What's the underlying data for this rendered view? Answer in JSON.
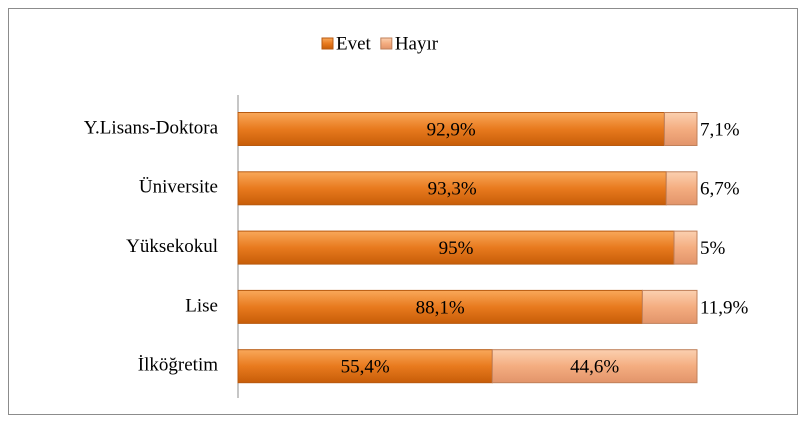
{
  "chart_data": {
    "type": "stacked_bar_horizontal",
    "categories": [
      "Y.Lisans-Doktora",
      "Üniversite",
      "Yüksekokul",
      "Lise",
      "İlköğretim"
    ],
    "series": [
      {
        "name": "Evet",
        "color": "#e46c0a",
        "values": [
          92.9,
          93.3,
          95,
          88.1,
          55.4
        ],
        "value_labels": [
          "92,9%",
          "93,3%",
          "95%",
          "88,1%",
          "55,4%"
        ]
      },
      {
        "name": "Hayır",
        "color": "#f6b48a",
        "values": [
          7.1,
          6.7,
          5,
          11.9,
          44.6
        ],
        "value_labels": [
          "7,1%",
          "6,7%",
          "5%",
          "11,9%",
          "44,6%"
        ]
      }
    ],
    "legend": "top"
  }
}
